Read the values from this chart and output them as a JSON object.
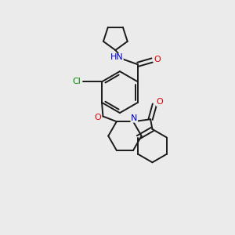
{
  "background_color": "#ebebeb",
  "bond_color": "#1a1a1a",
  "atom_colors": {
    "O": "#dd0000",
    "N": "#0000cc",
    "Cl": "#008800",
    "C": "#1a1a1a"
  },
  "figsize": [
    3.0,
    3.0
  ],
  "dpi": 100
}
